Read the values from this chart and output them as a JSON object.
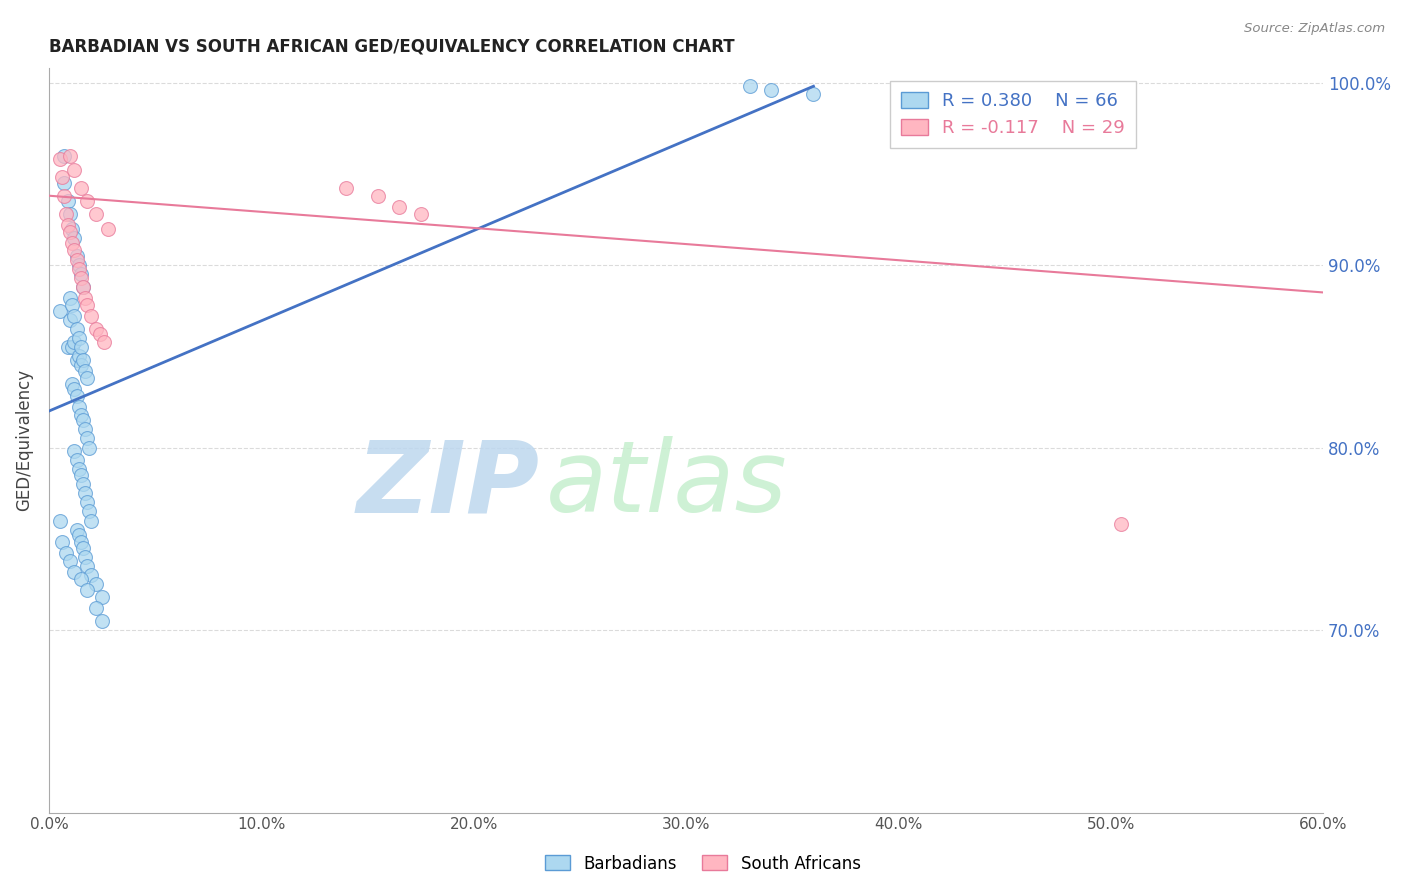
{
  "title": "BARBADIAN VS SOUTH AFRICAN GED/EQUIVALENCY CORRELATION CHART",
  "source_text": "Source: ZipAtlas.com",
  "ylabel": "GED/Equivalency",
  "xlim": [
    0.0,
    0.6
  ],
  "ylim": [
    0.6,
    1.008
  ],
  "yticks": [
    0.7,
    0.8,
    0.9,
    1.0
  ],
  "ytick_labels": [
    "70.0%",
    "80.0%",
    "90.0%",
    "100.0%"
  ],
  "xticks": [
    0.0,
    0.1,
    0.2,
    0.3,
    0.4,
    0.5,
    0.6
  ],
  "xtick_labels": [
    "0.0%",
    "10.0%",
    "20.0%",
    "30.0%",
    "40.0%",
    "50.0%",
    "60.0%"
  ],
  "barbadian_color": "#ADD8F0",
  "barbadian_edge_color": "#5B9BD5",
  "south_african_color": "#FFB6C1",
  "south_african_edge_color": "#E87A9A",
  "blue_line_color": "#4472C4",
  "pink_line_color": "#E87A9A",
  "grid_color": "#CCCCCC",
  "watermark_zip_color": "#C5DCF0",
  "watermark_atlas_color": "#D5E8D4",
  "R_barbadian": 0.38,
  "N_barbadian": 66,
  "R_south_african": -0.117,
  "N_south_african": 29,
  "barbadian_x": [
    0.005,
    0.007,
    0.009,
    0.01,
    0.011,
    0.012,
    0.013,
    0.014,
    0.015,
    0.007,
    0.009,
    0.01,
    0.011,
    0.012,
    0.013,
    0.014,
    0.015,
    0.016,
    0.01,
    0.011,
    0.012,
    0.013,
    0.014,
    0.015,
    0.016,
    0.017,
    0.018,
    0.011,
    0.012,
    0.013,
    0.014,
    0.015,
    0.016,
    0.017,
    0.018,
    0.019,
    0.012,
    0.013,
    0.014,
    0.015,
    0.016,
    0.017,
    0.018,
    0.019,
    0.02,
    0.013,
    0.014,
    0.015,
    0.016,
    0.017,
    0.018,
    0.02,
    0.022,
    0.025,
    0.005,
    0.006,
    0.008,
    0.01,
    0.012,
    0.015,
    0.018,
    0.022,
    0.025,
    0.33,
    0.34,
    0.36
  ],
  "barbadian_y": [
    0.875,
    0.96,
    0.855,
    0.87,
    0.855,
    0.858,
    0.848,
    0.85,
    0.845,
    0.945,
    0.935,
    0.928,
    0.92,
    0.915,
    0.905,
    0.9,
    0.895,
    0.888,
    0.882,
    0.878,
    0.872,
    0.865,
    0.86,
    0.855,
    0.848,
    0.842,
    0.838,
    0.835,
    0.832,
    0.828,
    0.822,
    0.818,
    0.815,
    0.81,
    0.805,
    0.8,
    0.798,
    0.793,
    0.788,
    0.785,
    0.78,
    0.775,
    0.77,
    0.765,
    0.76,
    0.755,
    0.752,
    0.748,
    0.745,
    0.74,
    0.735,
    0.73,
    0.725,
    0.718,
    0.76,
    0.748,
    0.742,
    0.738,
    0.732,
    0.728,
    0.722,
    0.712,
    0.705,
    0.998,
    0.996,
    0.994
  ],
  "south_african_x": [
    0.005,
    0.006,
    0.007,
    0.008,
    0.009,
    0.01,
    0.011,
    0.012,
    0.013,
    0.014,
    0.015,
    0.016,
    0.017,
    0.018,
    0.02,
    0.022,
    0.024,
    0.026,
    0.01,
    0.012,
    0.015,
    0.018,
    0.022,
    0.028,
    0.14,
    0.155,
    0.165,
    0.175,
    0.505
  ],
  "south_african_y": [
    0.958,
    0.948,
    0.938,
    0.928,
    0.922,
    0.918,
    0.912,
    0.908,
    0.903,
    0.898,
    0.893,
    0.888,
    0.882,
    0.878,
    0.872,
    0.865,
    0.862,
    0.858,
    0.96,
    0.952,
    0.942,
    0.935,
    0.928,
    0.92,
    0.942,
    0.938,
    0.932,
    0.928,
    0.758
  ],
  "blue_line_x0": 0.0,
  "blue_line_y0": 0.82,
  "blue_line_x1": 0.36,
  "blue_line_y1": 0.998,
  "pink_line_x0": 0.0,
  "pink_line_y0": 0.938,
  "pink_line_x1": 0.6,
  "pink_line_y1": 0.885
}
